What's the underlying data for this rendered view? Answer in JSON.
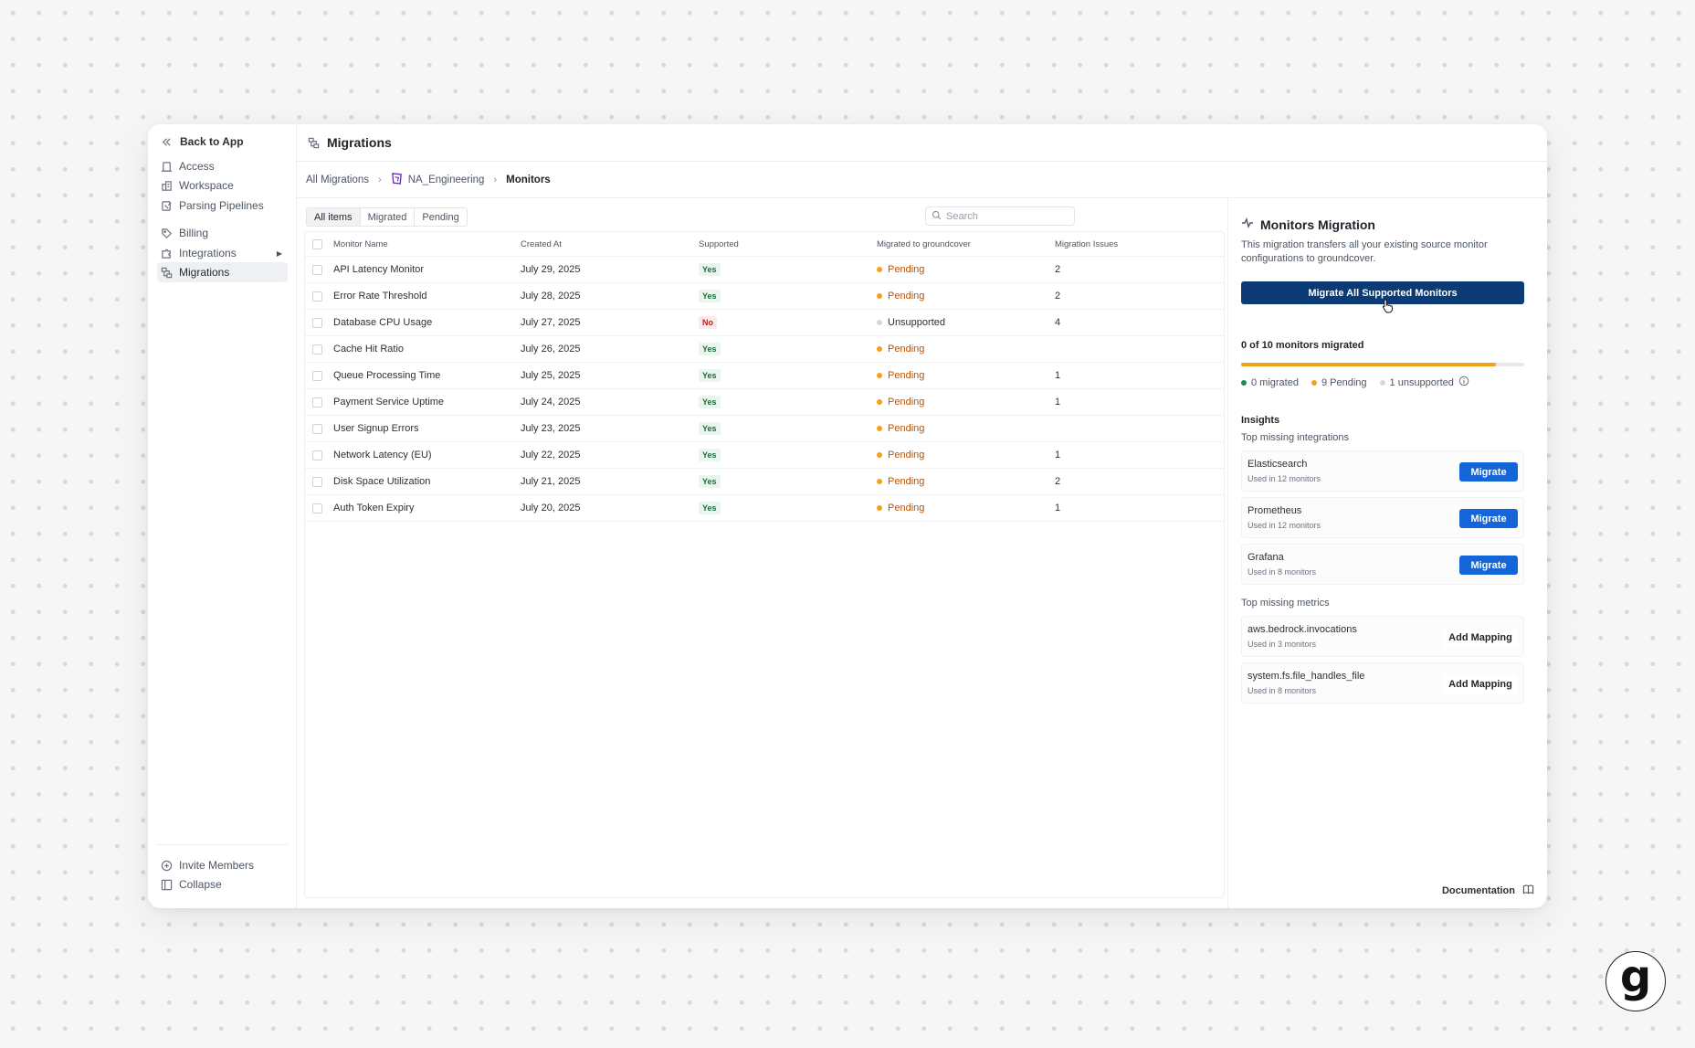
{
  "sidebar": {
    "back_label": "Back to App",
    "items": [
      {
        "label": "Access",
        "icon": "door-icon"
      },
      {
        "label": "Workspace",
        "icon": "building-icon"
      },
      {
        "label": "Parsing Pipelines",
        "icon": "pipeline-icon"
      },
      {
        "label": "Billing",
        "icon": "tag-icon"
      },
      {
        "label": "Integrations",
        "icon": "puzzle-icon"
      },
      {
        "label": "Migrations",
        "icon": "migration-icon"
      }
    ],
    "invite_label": "Invite Members",
    "collapse_label": "Collapse"
  },
  "header": {
    "title": "Migrations"
  },
  "breadcrumb": {
    "root": "All Migrations",
    "org": "NA_Engineering",
    "current": "Monitors"
  },
  "tabs": [
    "All items",
    "Migrated",
    "Pending"
  ],
  "search": {
    "placeholder": "Search"
  },
  "table": {
    "columns": [
      "Monitor Name",
      "Created At",
      "Supported",
      "Migrated to groundcover",
      "Migration Issues"
    ],
    "rows": [
      {
        "name": "API Latency Monitor",
        "created": "July 29, 2025",
        "supported": "Yes",
        "status": "Pending",
        "issues": "2"
      },
      {
        "name": "Error Rate Threshold",
        "created": "July 28, 2025",
        "supported": "Yes",
        "status": "Pending",
        "issues": "2"
      },
      {
        "name": "Database CPU Usage",
        "created": "July 27, 2025",
        "supported": "No",
        "status": "Unsupported",
        "issues": "4"
      },
      {
        "name": "Cache Hit Ratio",
        "created": "July 26, 2025",
        "supported": "Yes",
        "status": "Pending",
        "issues": ""
      },
      {
        "name": "Queue Processing Time",
        "created": "July 25, 2025",
        "supported": "Yes",
        "status": "Pending",
        "issues": "1"
      },
      {
        "name": "Payment Service Uptime",
        "created": "July 24, 2025",
        "supported": "Yes",
        "status": "Pending",
        "issues": "1"
      },
      {
        "name": "User Signup Errors",
        "created": "July 23, 2025",
        "supported": "Yes",
        "status": "Pending",
        "issues": ""
      },
      {
        "name": "Network Latency (EU)",
        "created": "July 22, 2025",
        "supported": "Yes",
        "status": "Pending",
        "issues": "1"
      },
      {
        "name": "Disk Space Utilization",
        "created": "July 21, 2025",
        "supported": "Yes",
        "status": "Pending",
        "issues": "2"
      },
      {
        "name": "Auth Token Expiry",
        "created": "July 20, 2025",
        "supported": "Yes",
        "status": "Pending",
        "issues": "1"
      }
    ]
  },
  "panel": {
    "title": "Monitors Migration",
    "description": "This migration transfers all your existing source monitor configurations to groundcover.",
    "migrate_all_label": "Migrate All Supported Monitors",
    "progress_label": "0 of 10 monitors migrated",
    "progress_fraction": 0.9,
    "legend": {
      "migrated": "0 migrated",
      "pending": "9 Pending",
      "unsupported": "1 unsupported"
    },
    "insights_title": "Insights",
    "integrations_title": "Top missing integrations",
    "integrations": [
      {
        "name": "Elasticsearch",
        "usage": "Used in 12 monitors",
        "action": "Migrate"
      },
      {
        "name": "Prometheus",
        "usage": "Used in 12 monitors",
        "action": "Migrate"
      },
      {
        "name": "Grafana",
        "usage": "Used in 8 monitors",
        "action": "Migrate"
      }
    ],
    "metrics_title": "Top missing metrics",
    "metrics": [
      {
        "name": "aws.bedrock.invocations",
        "usage": "Used in 3 monitors",
        "action": "Add Mapping"
      },
      {
        "name": "system.fs.file_handles_file",
        "usage": "Used in 8 monitors",
        "action": "Add Mapping"
      }
    ],
    "docs_label": "Documentation"
  },
  "colors": {
    "accent_navy": "#0b3a75",
    "accent_blue": "#1466d8",
    "pending": "#f5a017",
    "migrated": "#1e8a4c",
    "unsupported": "#d6d8dc"
  },
  "logo": {
    "letter": "g"
  }
}
